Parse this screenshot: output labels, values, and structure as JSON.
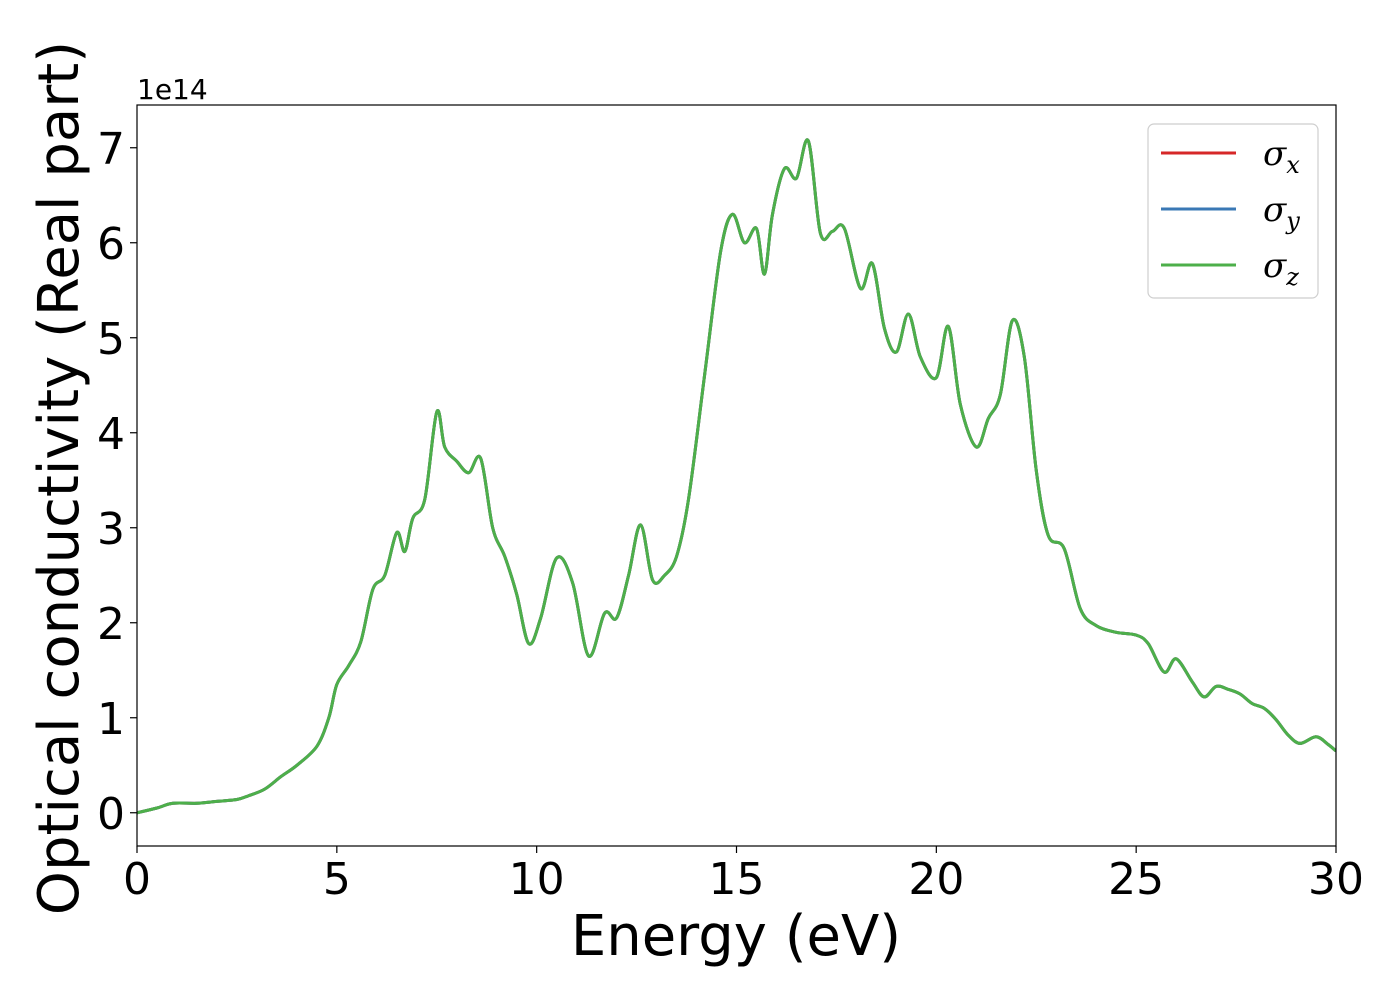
{
  "chart_data": {
    "type": "line",
    "xlabel": "Energy (eV)",
    "ylabel": "Optical conductivity (Real part)",
    "y_offset_label": "1e14",
    "xlim": [
      0,
      30
    ],
    "ylim": [
      -0.35,
      7.45
    ],
    "x_ticks": [
      0,
      5,
      10,
      15,
      20,
      25,
      30
    ],
    "y_ticks": [
      0,
      1,
      2,
      3,
      4,
      5,
      6,
      7
    ],
    "grid": false,
    "legend_position": "top-right",
    "colors": {
      "sigma_x": "#d62728",
      "sigma_y": "#3a78b5",
      "sigma_z": "#4daf4a"
    },
    "legend": [
      {
        "symbol": "σ",
        "sub": "x",
        "color": "#d62728"
      },
      {
        "symbol": "σ",
        "sub": "y",
        "color": "#3a78b5"
      },
      {
        "symbol": "σ",
        "sub": "z",
        "color": "#4daf4a"
      }
    ],
    "series": [
      {
        "name": "σx",
        "color": "#d62728"
      },
      {
        "name": "σy",
        "color": "#3a78b5"
      },
      {
        "name": "σz",
        "color": "#4daf4a"
      }
    ],
    "x": [
      0,
      0.5,
      0.9,
      1.5,
      2.0,
      2.5,
      2.8,
      3.2,
      3.6,
      4.0,
      4.5,
      4.8,
      5.0,
      5.3,
      5.6,
      5.9,
      6.2,
      6.5,
      6.7,
      6.9,
      7.2,
      7.5,
      7.7,
      8.0,
      8.3,
      8.6,
      8.9,
      9.2,
      9.5,
      9.8,
      10.1,
      10.5,
      10.9,
      11.3,
      11.7,
      12.0,
      12.3,
      12.6,
      12.9,
      13.2,
      13.5,
      13.8,
      14.2,
      14.6,
      14.9,
      15.2,
      15.5,
      15.7,
      15.9,
      16.2,
      16.5,
      16.8,
      17.1,
      17.4,
      17.7,
      18.1,
      18.4,
      18.7,
      19.0,
      19.3,
      19.6,
      20.0,
      20.3,
      20.6,
      21.0,
      21.3,
      21.6,
      21.9,
      22.2,
      22.5,
      22.8,
      23.2,
      23.6,
      24.0,
      24.5,
      25.0,
      25.3,
      25.7,
      26.0,
      26.4,
      26.7,
      27.0,
      27.3,
      27.6,
      27.9,
      28.2,
      28.5,
      28.8,
      29.1,
      29.5,
      29.8,
      30.0
    ],
    "y": [
      0.0,
      0.05,
      0.1,
      0.1,
      0.12,
      0.14,
      0.18,
      0.25,
      0.38,
      0.5,
      0.7,
      1.0,
      1.35,
      1.55,
      1.8,
      2.35,
      2.5,
      2.95,
      2.75,
      3.1,
      3.3,
      4.22,
      3.85,
      3.7,
      3.58,
      3.73,
      3.0,
      2.7,
      2.3,
      1.78,
      2.05,
      2.68,
      2.42,
      1.65,
      2.1,
      2.05,
      2.5,
      3.03,
      2.45,
      2.5,
      2.7,
      3.3,
      4.6,
      5.9,
      6.3,
      6.0,
      6.15,
      5.67,
      6.3,
      6.78,
      6.68,
      7.07,
      6.1,
      6.12,
      6.15,
      5.52,
      5.78,
      5.1,
      4.85,
      5.25,
      4.8,
      4.58,
      5.12,
      4.3,
      3.85,
      4.15,
      4.4,
      5.18,
      4.8,
      3.6,
      2.92,
      2.78,
      2.15,
      1.97,
      1.9,
      1.87,
      1.78,
      1.48,
      1.62,
      1.38,
      1.22,
      1.33,
      1.3,
      1.25,
      1.15,
      1.1,
      0.98,
      0.82,
      0.73,
      0.8,
      0.72,
      0.65
    ]
  }
}
